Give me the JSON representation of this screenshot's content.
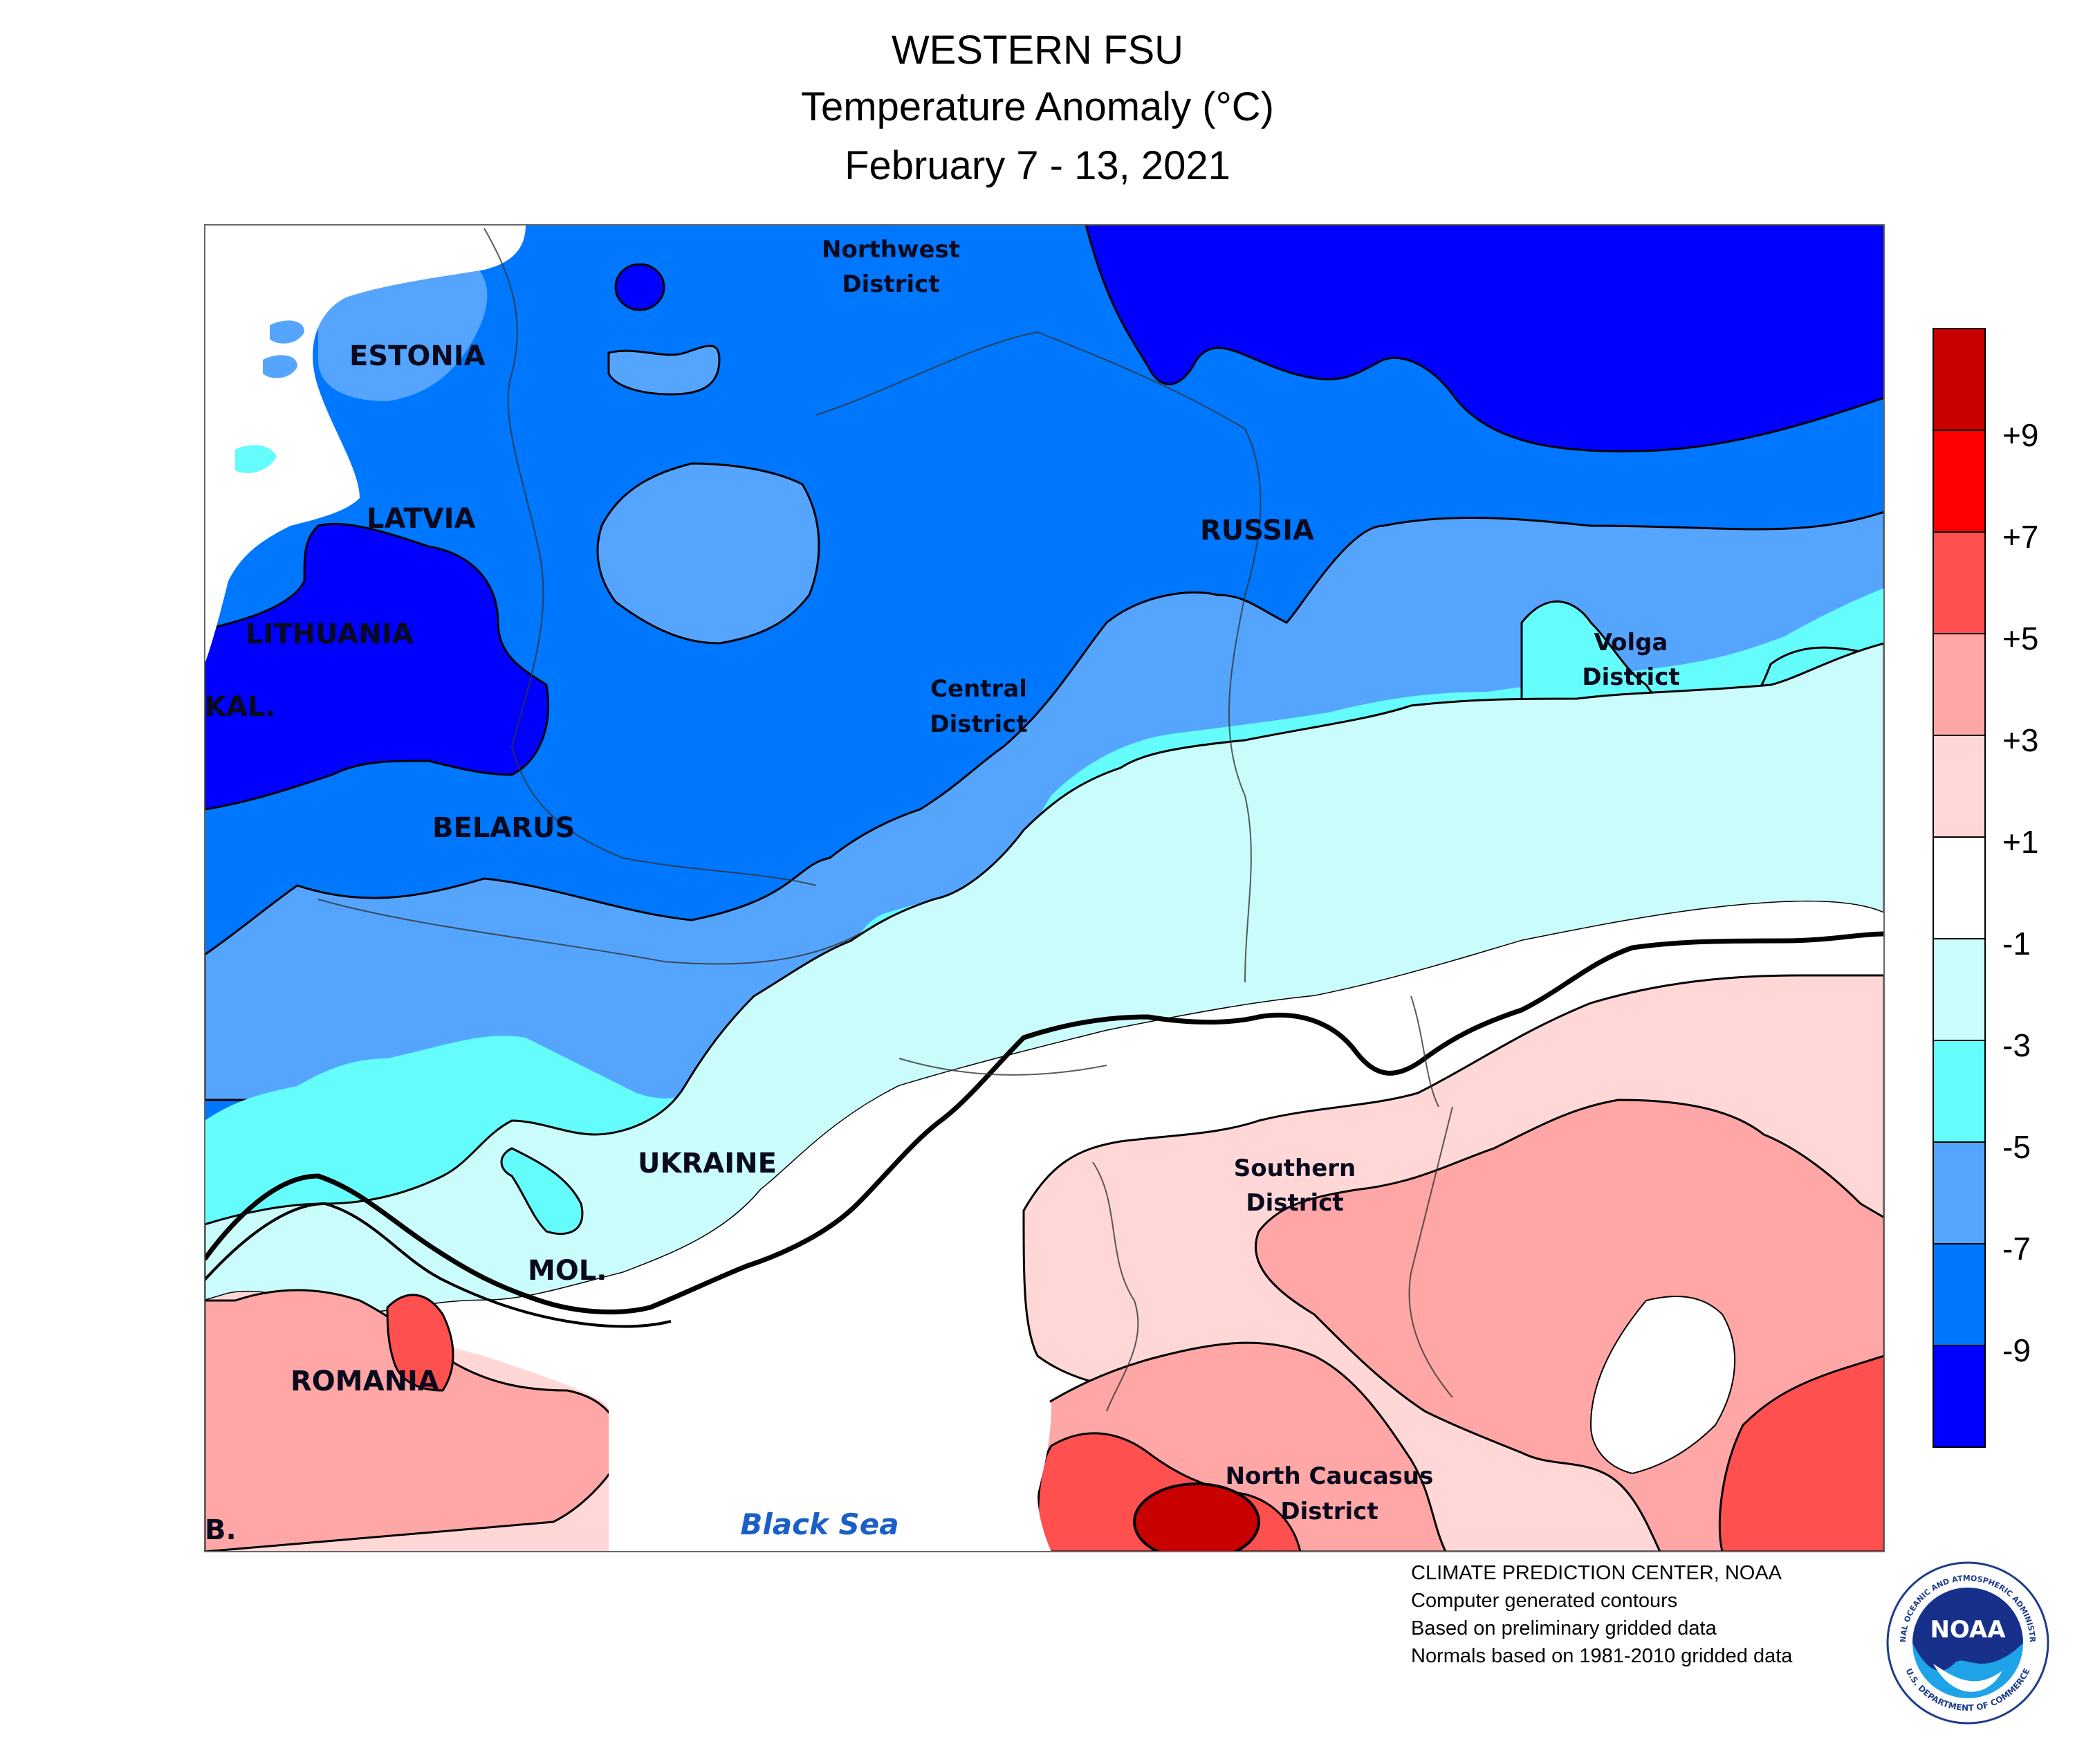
{
  "title": {
    "line1": "WESTERN FSU",
    "line2": "Temperature Anomaly (°C)",
    "line3": "February 7 - 13, 2021"
  },
  "labels": {
    "estonia": "ESTONIA",
    "latvia": "LATVIA",
    "lithuania": "LITHUANIA",
    "kal": "KAL.",
    "belarus": "BELARUS",
    "russia": "RUSSIA",
    "ukraine": "UKRAINE",
    "mol": "MOL.",
    "romania": "ROMANIA",
    "bulgaria": "B.",
    "northwest_1": "Northwest",
    "northwest_2": "District",
    "central_1": "Central",
    "central_2": "District",
    "volga_1": "Volga",
    "volga_2": "District",
    "southern_1": "Southern",
    "southern_2": "District",
    "ncaucasus_1": "North Caucasus",
    "ncaucasus_2": "District",
    "black_sea": "Black Sea"
  },
  "legend": {
    "labels": [
      "+9",
      "+7",
      "+5",
      "+3",
      "+1",
      "-1",
      "-3",
      "-5",
      "-7",
      "-9"
    ],
    "colors": [
      "#c80000",
      "#ff0000",
      "#ff5050",
      "#ffa6a6",
      "#ffd7d7",
      "#ffffff",
      "#cbfcfc",
      "#65fcfc",
      "#55a5ff",
      "#0077ff",
      "#0000ff"
    ]
  },
  "credits": {
    "line1": "CLIMATE PREDICTION CENTER, NOAA",
    "line2": "Computer generated contours",
    "line3": "Based on preliminary gridded data",
    "line4": "Normals based on 1981-2010 gridded data"
  },
  "logo": {
    "text": "NOAA",
    "ring_top": "NATIONAL OCEANIC AND ATMOSPHERIC ADMINISTRATION",
    "ring_bottom": "U.S. DEPARTMENT OF COMMERCE"
  }
}
